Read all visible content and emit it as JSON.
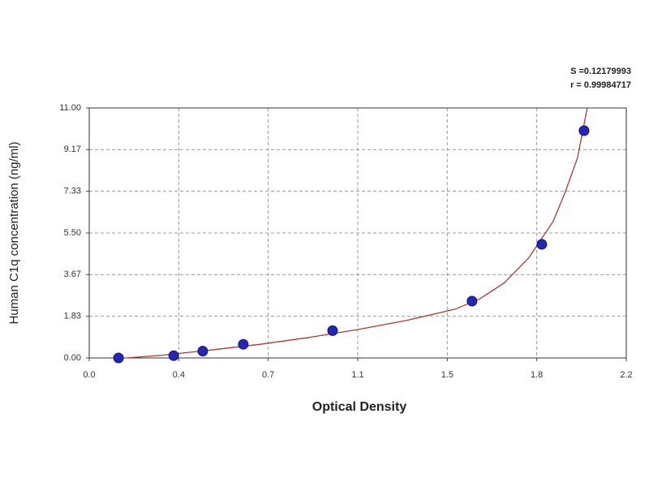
{
  "chart_data": {
    "type": "scatter",
    "x_label": "Optical Density",
    "y_label": "Human C1q concentration (ng/ml)",
    "annotations": [
      "S =0.12179993",
      "r = 0.99984717"
    ],
    "xlim": [
      0,
      2.2
    ],
    "xticks": [
      {
        "value": 0,
        "label": "0.0"
      },
      {
        "value": 0.3667,
        "label": "0.4"
      },
      {
        "value": 0.7333,
        "label": "0.7"
      },
      {
        "value": 1.1,
        "label": "1.1"
      },
      {
        "value": 1.4667,
        "label": "1.5"
      },
      {
        "value": 1.8333,
        "label": "1.8"
      },
      {
        "value": 2.2,
        "label": "2.2"
      }
    ],
    "ylim": [
      0,
      11
    ],
    "yticks": [
      {
        "value": 0,
        "label": "0.00"
      },
      {
        "value": 1.8333,
        "label": "1.83"
      },
      {
        "value": 3.6667,
        "label": "3.67"
      },
      {
        "value": 5.5,
        "label": "5.50"
      },
      {
        "value": 7.3333,
        "label": "7.33"
      },
      {
        "value": 9.1667,
        "label": "9.17"
      },
      {
        "value": 11,
        "label": "11.00"
      }
    ],
    "grid": true,
    "series": [
      {
        "color": "#2626b4",
        "x": [
          0.12,
          0.346,
          0.465,
          0.631,
          0.997,
          1.568,
          1.854,
          2.027
        ],
        "values": [
          0,
          0.1,
          0.3,
          0.6,
          1.2,
          2.5,
          5,
          10
        ]
      },
      {
        "color": "#a83a32",
        "kind": "line",
        "x": [
          0.15,
          0.3,
          0.5,
          0.7,
          0.9,
          1.1,
          1.3,
          1.5,
          1.6,
          1.7,
          1.8,
          1.9,
          1.95,
          2.0,
          2.04
        ],
        "values": [
          0,
          0.12,
          0.35,
          0.6,
          0.9,
          1.25,
          1.65,
          2.15,
          2.6,
          3.3,
          4.4,
          6.0,
          7.3,
          8.8,
          11
        ]
      }
    ]
  }
}
